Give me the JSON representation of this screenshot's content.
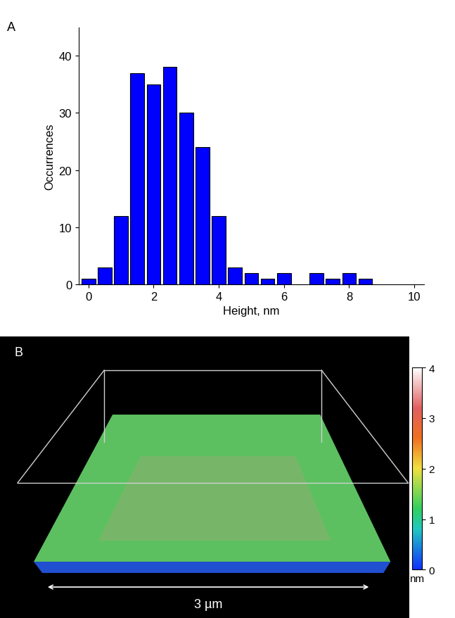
{
  "chart_data": [
    {
      "type": "histogram",
      "panel_label": "A",
      "x_label": "Height, nm",
      "y_label": "Occurrences",
      "bins": [
        -0.25,
        0.25,
        0.75,
        1.25,
        1.75,
        2.25,
        2.75,
        3.25,
        3.75,
        4.25,
        4.75,
        5.25,
        5.75,
        6.25,
        6.75,
        7.25,
        7.75,
        8.25,
        8.75
      ],
      "counts": [
        1,
        3,
        12,
        37,
        35,
        38,
        30,
        24,
        12,
        3,
        2,
        1,
        2,
        0,
        2,
        1,
        2,
        1
      ],
      "color": "#0000ff",
      "xlim": [
        -0.3,
        10.3
      ],
      "xticks": [
        0,
        2,
        4,
        6,
        8,
        10
      ],
      "ylim": [
        0,
        45
      ],
      "yticks": [
        0,
        10,
        20,
        30,
        40
      ]
    },
    {
      "type": "surface",
      "panel_label": "B",
      "scale_bar": "3 µm",
      "colorbar": {
        "range": [
          0,
          4
        ],
        "ticks": [
          0,
          1,
          2,
          3,
          4
        ],
        "label": "nm"
      }
    }
  ]
}
